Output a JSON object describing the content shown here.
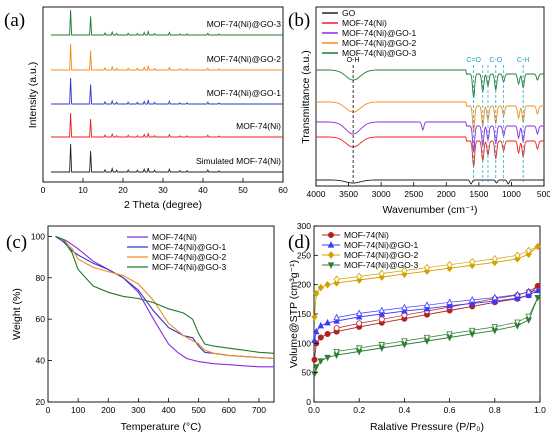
{
  "colors": {
    "black": "#222222",
    "red": "#e8231e",
    "blue": "#2b3cc7",
    "orange": "#f08c1e",
    "green": "#1f7a2e",
    "purple": "#8a2be2",
    "d_red": "#b22222",
    "d_blue": "#3b3bff",
    "d_orange": "#d4a000",
    "d_green": "#2e7d32",
    "cyan": "#1aa3c7"
  },
  "chart_data": [
    {
      "panel": "(a)",
      "type": "line",
      "xlabel": "2 Theta (degree)",
      "ylabel": "Intensity (a.u.)",
      "xlim": [
        0,
        60
      ],
      "xticks": [
        "0",
        "10",
        "20",
        "30",
        "40",
        "50",
        "60"
      ],
      "peaks": [
        {
          "x": 6.9,
          "h": 1.0
        },
        {
          "x": 11.9,
          "h": 0.75
        },
        {
          "x": 15.5,
          "h": 0.08
        },
        {
          "x": 17.3,
          "h": 0.12
        },
        {
          "x": 18.4,
          "h": 0.06
        },
        {
          "x": 21.3,
          "h": 0.07
        },
        {
          "x": 23.6,
          "h": 0.06
        },
        {
          "x": 25.3,
          "h": 0.1
        },
        {
          "x": 26.3,
          "h": 0.14
        },
        {
          "x": 27.9,
          "h": 0.06
        },
        {
          "x": 31.6,
          "h": 0.1
        },
        {
          "x": 34.2,
          "h": 0.05
        },
        {
          "x": 36.0,
          "h": 0.05
        },
        {
          "x": 41.2,
          "h": 0.07
        },
        {
          "x": 44.0,
          "h": 0.04
        }
      ],
      "series": [
        {
          "name": "Simulated MOF-74(Ni)",
          "color_key": "black"
        },
        {
          "name": "MOF-74(Ni)",
          "color_key": "red"
        },
        {
          "name": "MOF-74(Ni)@GO-1",
          "color_key": "blue"
        },
        {
          "name": "MOF-74(Ni)@GO-2",
          "color_key": "orange"
        },
        {
          "name": "MOF-74(Ni)@GO-3",
          "color_key": "green"
        }
      ]
    },
    {
      "panel": "(b)",
      "type": "line",
      "xlabel": "Wavenumber (cm⁻¹)",
      "ylabel": "Transmittance (a.u.)",
      "xlim": [
        4000,
        500
      ],
      "xticks": [
        "4000",
        "3500",
        "3000",
        "2500",
        "2000",
        "1500",
        "1000",
        "500"
      ],
      "annotations": [
        "O-H",
        "C=O",
        "C-O",
        "C-H"
      ],
      "annotation_x": [
        3430,
        1580,
        1240,
        820
      ],
      "legend": [
        "GO",
        "MOF-74(Ni)",
        "MOF-74(Ni)@GO-1",
        "MOF-74(Ni)@GO-2",
        "MOF-74(Ni)@GO-3"
      ],
      "series": [
        {
          "name": "GO",
          "color_key": "black"
        },
        {
          "name": "MOF-74(Ni)",
          "color_key": "red"
        },
        {
          "name": "MOF-74(Ni)@GO-1",
          "color_key": "purple"
        },
        {
          "name": "MOF-74(Ni)@GO-2",
          "color_key": "orange"
        },
        {
          "name": "MOF-74(Ni)@GO-3",
          "color_key": "green"
        }
      ]
    },
    {
      "panel": "(c)",
      "type": "line",
      "xlabel": "Temperature (°C)",
      "ylabel": "Weight (%)",
      "xlim": [
        0,
        750
      ],
      "ylim": [
        20,
        105
      ],
      "xticks": [
        0,
        100,
        200,
        300,
        400,
        500,
        600,
        700
      ],
      "yticks": [
        20,
        40,
        60,
        80,
        100
      ],
      "series": [
        {
          "name": "MOF-74(Ni)",
          "color_key": "purple",
          "x": [
            25,
            60,
            100,
            150,
            200,
            250,
            300,
            350,
            400,
            430,
            460,
            500,
            550,
            600,
            650,
            700,
            750
          ],
          "y": [
            100,
            98,
            94,
            88,
            84,
            80,
            73,
            60,
            48,
            44,
            41,
            39.5,
            38.5,
            38,
            37.5,
            37,
            37
          ]
        },
        {
          "name": "MOF-74(Ni)@GO-1",
          "color_key": "blue",
          "x": [
            25,
            50,
            80,
            100,
            150,
            200,
            250,
            300,
            350,
            400,
            450,
            480,
            500,
            520,
            550,
            600,
            650,
            700,
            750
          ],
          "y": [
            100,
            97.5,
            93,
            91,
            87,
            84,
            80,
            74,
            64,
            56,
            52,
            51,
            47,
            44,
            43.5,
            42.5,
            42,
            41.5,
            41
          ]
        },
        {
          "name": "MOF-74(Ni)@GO-2",
          "color_key": "orange",
          "x": [
            25,
            50,
            80,
            100,
            150,
            200,
            250,
            300,
            350,
            400,
            450,
            500,
            520,
            550,
            600,
            650,
            700,
            750
          ],
          "y": [
            100,
            98.5,
            94,
            89,
            85,
            83,
            81,
            77,
            69,
            58,
            52,
            48,
            45,
            43.5,
            42.5,
            42,
            41.5,
            41
          ]
        },
        {
          "name": "MOF-74(Ni)@GO-3",
          "color_key": "green",
          "x": [
            25,
            50,
            80,
            100,
            150,
            200,
            250,
            300,
            350,
            400,
            450,
            480,
            500,
            520,
            550,
            600,
            650,
            700,
            750
          ],
          "y": [
            100,
            98.5,
            92,
            84,
            76,
            73,
            71,
            70,
            68,
            65,
            63,
            60,
            53,
            48,
            47,
            46,
            45,
            44,
            43.5
          ]
        }
      ]
    },
    {
      "panel": "(d)",
      "type": "scatter",
      "xlabel": "Ralative Pressure (P/P₀)",
      "ylabel": "Volume@STP (cm³g⁻¹)",
      "xlim": [
        0,
        1
      ],
      "ylim": [
        0,
        300
      ],
      "xticks": [
        "0.0",
        "0.2",
        "0.4",
        "0.6",
        "0.8",
        "1.0"
      ],
      "yticks": [
        "0",
        "50",
        "100",
        "150",
        "200",
        "250",
        "300"
      ],
      "series": [
        {
          "name": "MOF-74(Ni)",
          "color_key": "d_red",
          "marker": "circle",
          "x": [
            0.002,
            0.01,
            0.03,
            0.06,
            0.1,
            0.2,
            0.3,
            0.4,
            0.5,
            0.6,
            0.7,
            0.8,
            0.9,
            0.95,
            0.99
          ],
          "y": [
            72,
            100,
            110,
            116,
            120,
            128,
            135,
            142,
            149,
            156,
            163,
            170,
            176,
            182,
            198
          ]
        },
        {
          "name": "MOF-74(Ni)@GO-1",
          "color_key": "d_blue",
          "marker": "triangle-up",
          "x": [
            0.002,
            0.01,
            0.03,
            0.06,
            0.1,
            0.2,
            0.3,
            0.4,
            0.5,
            0.6,
            0.7,
            0.8,
            0.9,
            0.95,
            0.99
          ],
          "y": [
            105,
            120,
            130,
            135,
            138,
            145,
            150,
            155,
            159,
            164,
            168,
            172,
            177,
            182,
            190
          ]
        },
        {
          "name": "MOF-74(Ni)@GO-2",
          "color_key": "d_orange",
          "marker": "diamond",
          "x": [
            0.002,
            0.01,
            0.03,
            0.06,
            0.1,
            0.2,
            0.3,
            0.4,
            0.5,
            0.6,
            0.7,
            0.8,
            0.9,
            0.95,
            0.99
          ],
          "y": [
            145,
            185,
            195,
            200,
            203,
            208,
            213,
            218,
            223,
            228,
            233,
            238,
            244,
            252,
            265
          ]
        },
        {
          "name": "MOF-74(Ni)@GO-3",
          "color_key": "d_green",
          "marker": "triangle-down",
          "x": [
            0.002,
            0.01,
            0.03,
            0.06,
            0.1,
            0.2,
            0.3,
            0.4,
            0.5,
            0.6,
            0.7,
            0.8,
            0.9,
            0.95,
            0.99
          ],
          "y": [
            48,
            60,
            70,
            76,
            80,
            86,
            92,
            98,
            104,
            110,
            116,
            122,
            130,
            140,
            178
          ]
        }
      ]
    }
  ]
}
